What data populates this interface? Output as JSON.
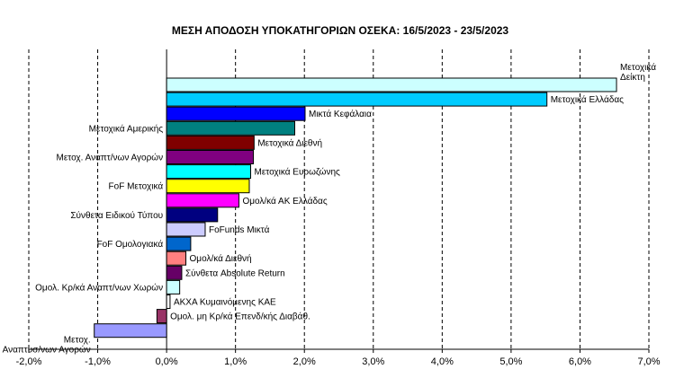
{
  "chart_data": {
    "type": "bar",
    "orientation": "horizontal",
    "title": "ΜΕΣΗ ΑΠΟΔΟΣΗ  ΥΠΟΚΑΤΗΓΟΡΙΩΝ  ΟΣΕΚΑ:  16/5/2023  - 23/5/2023",
    "xlabel": "",
    "ylabel": "",
    "xlim": [
      -2,
      7
    ],
    "ticks": [
      -2,
      -1,
      0,
      1,
      2,
      3,
      4,
      5,
      6,
      7
    ],
    "tick_labels": [
      "-2,0%",
      "-1,0%",
      "0,0%",
      "1,0%",
      "2,0%",
      "3,0%",
      "4,0%",
      "5,0%",
      "6,0%",
      "7,0%"
    ],
    "grid": "vertical dashed",
    "categories": [
      "Μετοχικά Δείκτη",
      "Μετοχικά Ελλάδας",
      "Μικτά Κεφάλαια",
      "Μετοχικά Αμερικής",
      "Μετοχικά Διεθνή",
      "Μετοχ. Αναπτ/νων Αγορών",
      "Μετοχικά Ευρωζώνης",
      "FoF Μετοχικά",
      "Ομολ/κά ΑΚ Ελλάδας",
      "Σύνθετα Ειδικού Τύπου",
      "FoFunds Μικτά",
      "FoF Ομολογιακά",
      "Ομολ/κά Διεθνή",
      "Σύνθετα Absolute Return",
      "Ομολ. Κρ/κά Αναπτ/νων Χωρών",
      "ΑΚΧΑ Κυμαινόμενης ΚΑΕ",
      "Ομολ. μη Κρ/κά Επενδ/κής Διαβάθ.",
      "Μετοχ. Αναπτυσ/νων Αγορών"
    ],
    "values": [
      6.53,
      5.52,
      2.01,
      1.86,
      1.27,
      1.26,
      1.22,
      1.2,
      1.05,
      0.74,
      0.56,
      0.35,
      0.28,
      0.22,
      0.19,
      0.05,
      -0.14,
      -1.05
    ],
    "colors": [
      "#ccffff",
      "#00ccff",
      "#0000ff",
      "#008080",
      "#800000",
      "#800080",
      "#00ffff",
      "#ffff00",
      "#ff00ff",
      "#000080",
      "#ccccff",
      "#0066cc",
      "#ff8080",
      "#660066",
      "#ccffff",
      "#ffffff",
      "#993366",
      "#9999ff"
    ]
  }
}
